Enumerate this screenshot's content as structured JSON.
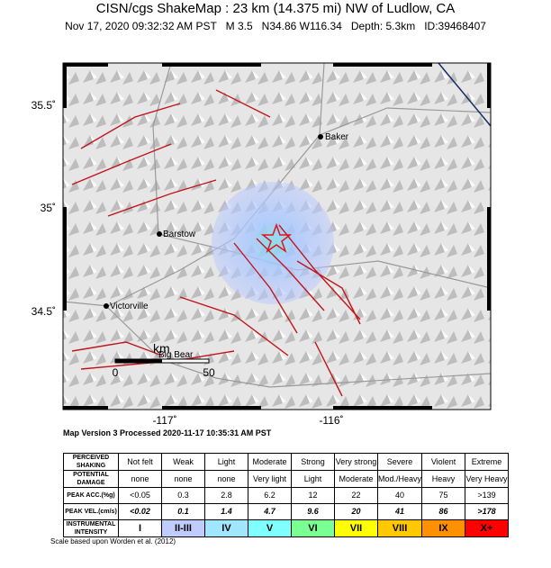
{
  "header": {
    "title": "CISN/cgs ShakeMap : 23 km (14.375 mi) NW of Ludlow, CA",
    "subtitle": "Nov 17, 2020 09:32:32 AM PST   M 3.5   N34.86 W116.34   Depth: 5.3km   ID:39468407"
  },
  "map": {
    "lat_labels": [
      "35.5˚",
      "35˚",
      "34.5˚"
    ],
    "lon_labels": [
      "-117˚",
      "-116˚"
    ],
    "places": [
      "Baker",
      "Barstow",
      "Victorville",
      "Big Bear"
    ],
    "scale": {
      "unit": "km",
      "ticks": [
        "0",
        "50"
      ]
    }
  },
  "processed": "Map Version 3 Processed 2020-11-17 10:35:31 AM PST",
  "table": {
    "rows": [
      {
        "label": "PERCEIVED SHAKING",
        "cells": [
          "Not felt",
          "Weak",
          "Light",
          "Moderate",
          "Strong",
          "Very strong",
          "Severe",
          "Violent",
          "Extreme"
        ]
      },
      {
        "label": "POTENTIAL DAMAGE",
        "cells": [
          "none",
          "none",
          "none",
          "Very light",
          "Light",
          "Moderate",
          "Mod./Heavy",
          "Heavy",
          "Very Heavy"
        ]
      },
      {
        "label": "PEAK ACC.(%g)",
        "cells": [
          "<0.05",
          "0.3",
          "2.8",
          "6.2",
          "12",
          "22",
          "40",
          "75",
          ">139"
        ]
      },
      {
        "label": "PEAK VEL.(cm/s)",
        "cells": [
          "<0.02",
          "0.1",
          "1.4",
          "4.7",
          "9.6",
          "20",
          "41",
          "86",
          ">178"
        ]
      },
      {
        "label": "INSTRUMENTAL INTENSITY",
        "cells": [
          "I",
          "II-III",
          "IV",
          "V",
          "VI",
          "VII",
          "VIII",
          "IX",
          "X+"
        ]
      }
    ],
    "intensity_colors": [
      "#ffffff",
      "#bfccff",
      "#a0e6ff",
      "#80ffff",
      "#7aff93",
      "#ffff00",
      "#ffc800",
      "#ff9100",
      "#ff0000"
    ]
  },
  "footer": "Scale based upon Worden et al. (2012)"
}
